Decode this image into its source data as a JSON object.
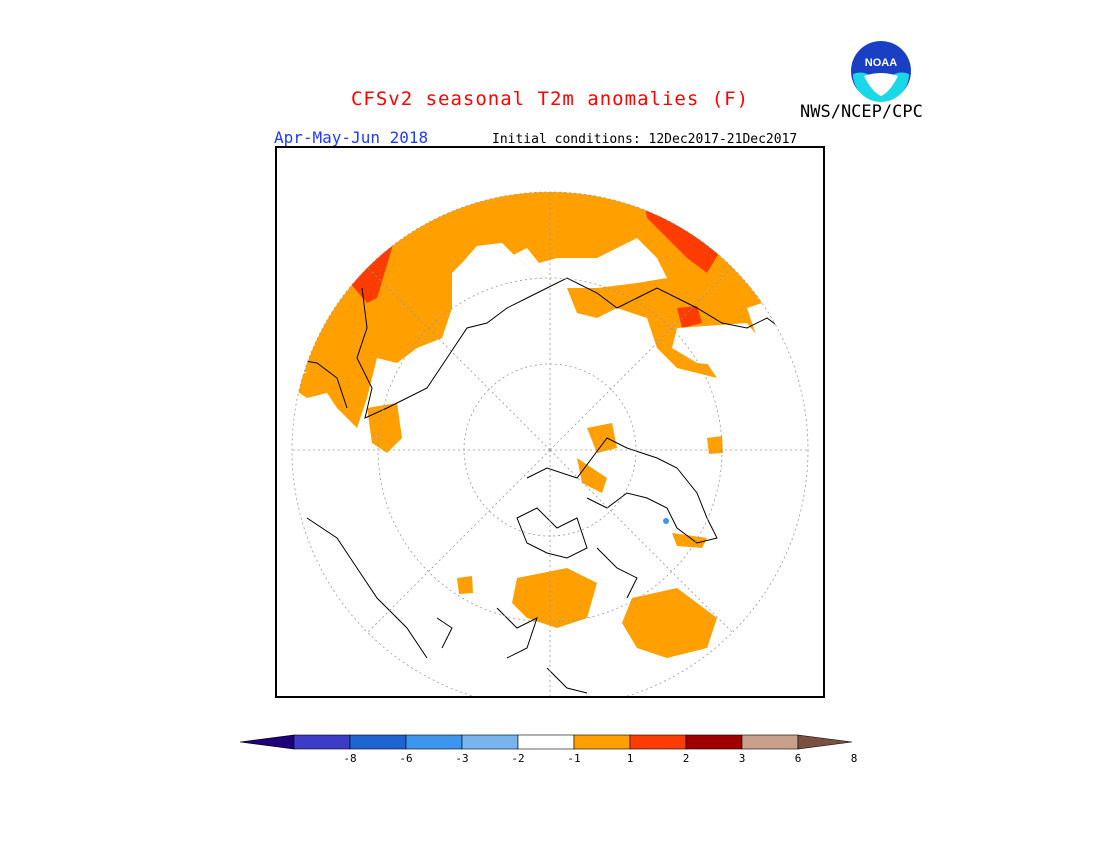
{
  "header": {
    "title": "CFSv2 seasonal T2m anomalies (F)",
    "agency": "NWS/NCEP/CPC",
    "season": "Apr-May-Jun 2018",
    "initial_conditions": "Initial conditions: 12Dec2017-21Dec2017",
    "logo_text": "NOAA"
  },
  "colors": {
    "title": "#ff0000",
    "season": "#1e3cff",
    "coast": "#000000",
    "grid": "#999999"
  },
  "colorbar": {
    "colors": [
      "#1e0078",
      "#3c3cc8",
      "#1e64d2",
      "#3c96f0",
      "#78b4f0",
      "#ffffff",
      "#ffa000",
      "#ff3c00",
      "#a00000",
      "#c8a08c",
      "#7c5040"
    ],
    "labels": [
      "-8",
      "-6",
      "-3",
      "-2",
      "-1",
      "1",
      "2",
      "3",
      "6",
      "8"
    ]
  }
}
